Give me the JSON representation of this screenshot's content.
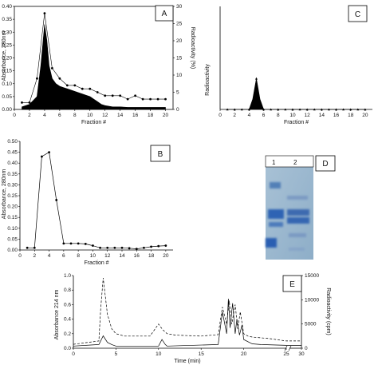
{
  "chart_data": [
    {
      "panel": "A",
      "type": "area+line",
      "xlabel": "Fraction #",
      "ylabel_left": "Absorbance, 280nm",
      "ylabel_right": "Radioactivity (%)",
      "x_ticks": [
        "0",
        "2",
        "4",
        "6",
        "8",
        "10",
        "12",
        "14",
        "16",
        "18",
        "20"
      ],
      "y_ticks_left": [
        "0.00",
        "0.05",
        "0.10",
        "0.15",
        "0.20",
        "0.25",
        "0.30",
        "0.35",
        "0.40"
      ],
      "y_ticks_right": [
        "0",
        "5",
        "10",
        "15",
        "20",
        "25",
        "30"
      ],
      "xlim": [
        0,
        21
      ],
      "ylim_left": [
        0,
        0.4
      ],
      "ylim_right": [
        0,
        30
      ],
      "series": [
        {
          "axis": "left",
          "x": [
            1,
            2,
            3,
            3.5,
            4,
            4.3,
            4.6,
            5,
            5.5,
            6,
            6.5,
            7,
            7.5,
            8,
            8.5,
            9,
            9.5,
            10,
            10.5,
            11,
            11.5,
            12,
            13,
            14,
            15,
            16,
            17,
            18,
            19,
            20
          ],
          "values": [
            0.01,
            0.02,
            0.05,
            0.17,
            0.33,
            0.27,
            0.17,
            0.12,
            0.1,
            0.09,
            0.085,
            0.08,
            0.075,
            0.07,
            0.065,
            0.06,
            0.055,
            0.05,
            0.04,
            0.03,
            0.02,
            0.015,
            0.01,
            0.01,
            0.008,
            0.008,
            0.008,
            0.008,
            0.008,
            0.008
          ]
        },
        {
          "axis": "right",
          "x": [
            1,
            2,
            3,
            4,
            5,
            6,
            7,
            8,
            9,
            10,
            11,
            12,
            13,
            14,
            15,
            16,
            17,
            18,
            19,
            20
          ],
          "values": [
            2,
            2,
            9,
            28,
            12,
            9,
            7,
            7,
            6,
            6,
            5,
            4,
            4,
            4,
            3,
            4,
            3,
            3,
            3,
            3
          ]
        }
      ]
    },
    {
      "panel": "B",
      "type": "line",
      "xlabel": "Fraction #",
      "ylabel": "Absorbance, 280nm",
      "x_ticks": [
        "0",
        "2",
        "4",
        "6",
        "8",
        "10",
        "12",
        "14",
        "16",
        "18",
        "20"
      ],
      "y_ticks": [
        "0.00",
        "0.05",
        "0.10",
        "0.15",
        "0.20",
        "0.25",
        "0.30",
        "0.35",
        "0.40",
        "0.45",
        "0.50"
      ],
      "xlim": [
        0,
        21
      ],
      "ylim": [
        0,
        0.5
      ],
      "x": [
        1,
        2,
        3,
        4,
        5,
        6,
        7,
        8,
        9,
        10,
        11,
        12,
        13,
        14,
        15,
        16,
        17,
        18,
        19,
        20
      ],
      "values": [
        0.01,
        0.01,
        0.43,
        0.45,
        0.23,
        0.03,
        0.03,
        0.03,
        0.028,
        0.02,
        0.01,
        0.01,
        0.01,
        0.01,
        0.008,
        0.005,
        0.01,
        0.015,
        0.018,
        0.02
      ]
    },
    {
      "panel": "C",
      "type": "area+line",
      "xlabel": "Fraction #",
      "ylabel": "Radioactivity",
      "x_ticks": [
        "0",
        "2",
        "4",
        "6",
        "8",
        "10",
        "12",
        "14",
        "16",
        "18",
        "20"
      ],
      "xlim": [
        0,
        21
      ],
      "ylim": [
        0,
        30
      ],
      "x": [
        1,
        2,
        3,
        4,
        4.5,
        5,
        5.5,
        6,
        7,
        8,
        9,
        10,
        11,
        12,
        13,
        14,
        15,
        16,
        17,
        18,
        19,
        20
      ],
      "values": [
        0,
        0,
        0,
        0,
        3,
        9,
        3,
        0,
        0,
        0,
        0,
        0,
        0,
        0,
        0,
        0,
        0,
        0,
        0,
        0,
        0,
        0
      ]
    },
    {
      "panel": "D",
      "type": "gel",
      "lanes": [
        "1",
        "2"
      ]
    },
    {
      "panel": "E",
      "type": "line",
      "xlabel": "Time (min)",
      "ylabel_left": "Absorbance 214 nm",
      "ylabel_right": "Radioactivity (cpm)",
      "x_ticks": [
        "0",
        "5",
        "10",
        "15",
        "20",
        "25",
        "30"
      ],
      "y_ticks_left": [
        "0.0",
        "0.2",
        "0.4",
        "0.6",
        "0.8",
        "1.0"
      ],
      "y_ticks_right": [
        "0",
        "5000",
        "10000",
        "15000"
      ],
      "xlim": [
        0,
        30
      ],
      "ylim_left": [
        0,
        1.0
      ],
      "ylim_right": [
        0,
        15000
      ],
      "series": [
        {
          "axis": "left",
          "style": "solid",
          "x": [
            0,
            3,
            3.5,
            4,
            4.5,
            5,
            10,
            10.4,
            10.8,
            11,
            17,
            17.5,
            18,
            18.2,
            18.4,
            18.7,
            19,
            19.2,
            19.5,
            19.8,
            20,
            21,
            22,
            25,
            30
          ],
          "values": [
            0.03,
            0.05,
            0.17,
            0.08,
            0.05,
            0.03,
            0.03,
            0.12,
            0.05,
            0.03,
            0.05,
            0.5,
            0.2,
            0.68,
            0.28,
            0.62,
            0.2,
            0.4,
            0.18,
            0.32,
            0.12,
            0.06,
            0.05,
            0.04,
            0.04
          ]
        },
        {
          "axis": "right",
          "style": "dashed",
          "x": [
            0,
            3,
            3.2,
            3.5,
            4,
            4.5,
            5,
            6,
            9,
            10,
            10.5,
            11,
            12,
            15,
            17,
            17.5,
            18,
            18.3,
            18.6,
            19,
            19.3,
            19.6,
            20,
            20.5,
            21,
            23,
            25,
            30
          ],
          "values": [
            800,
            1500,
            8000,
            14500,
            7000,
            4000,
            3000,
            2500,
            2500,
            5000,
            3800,
            3000,
            2700,
            2500,
            2800,
            8500,
            5000,
            9800,
            5000,
            9000,
            4000,
            7500,
            3000,
            2500,
            2300,
            2000,
            1500,
            1500
          ]
        }
      ]
    }
  ]
}
